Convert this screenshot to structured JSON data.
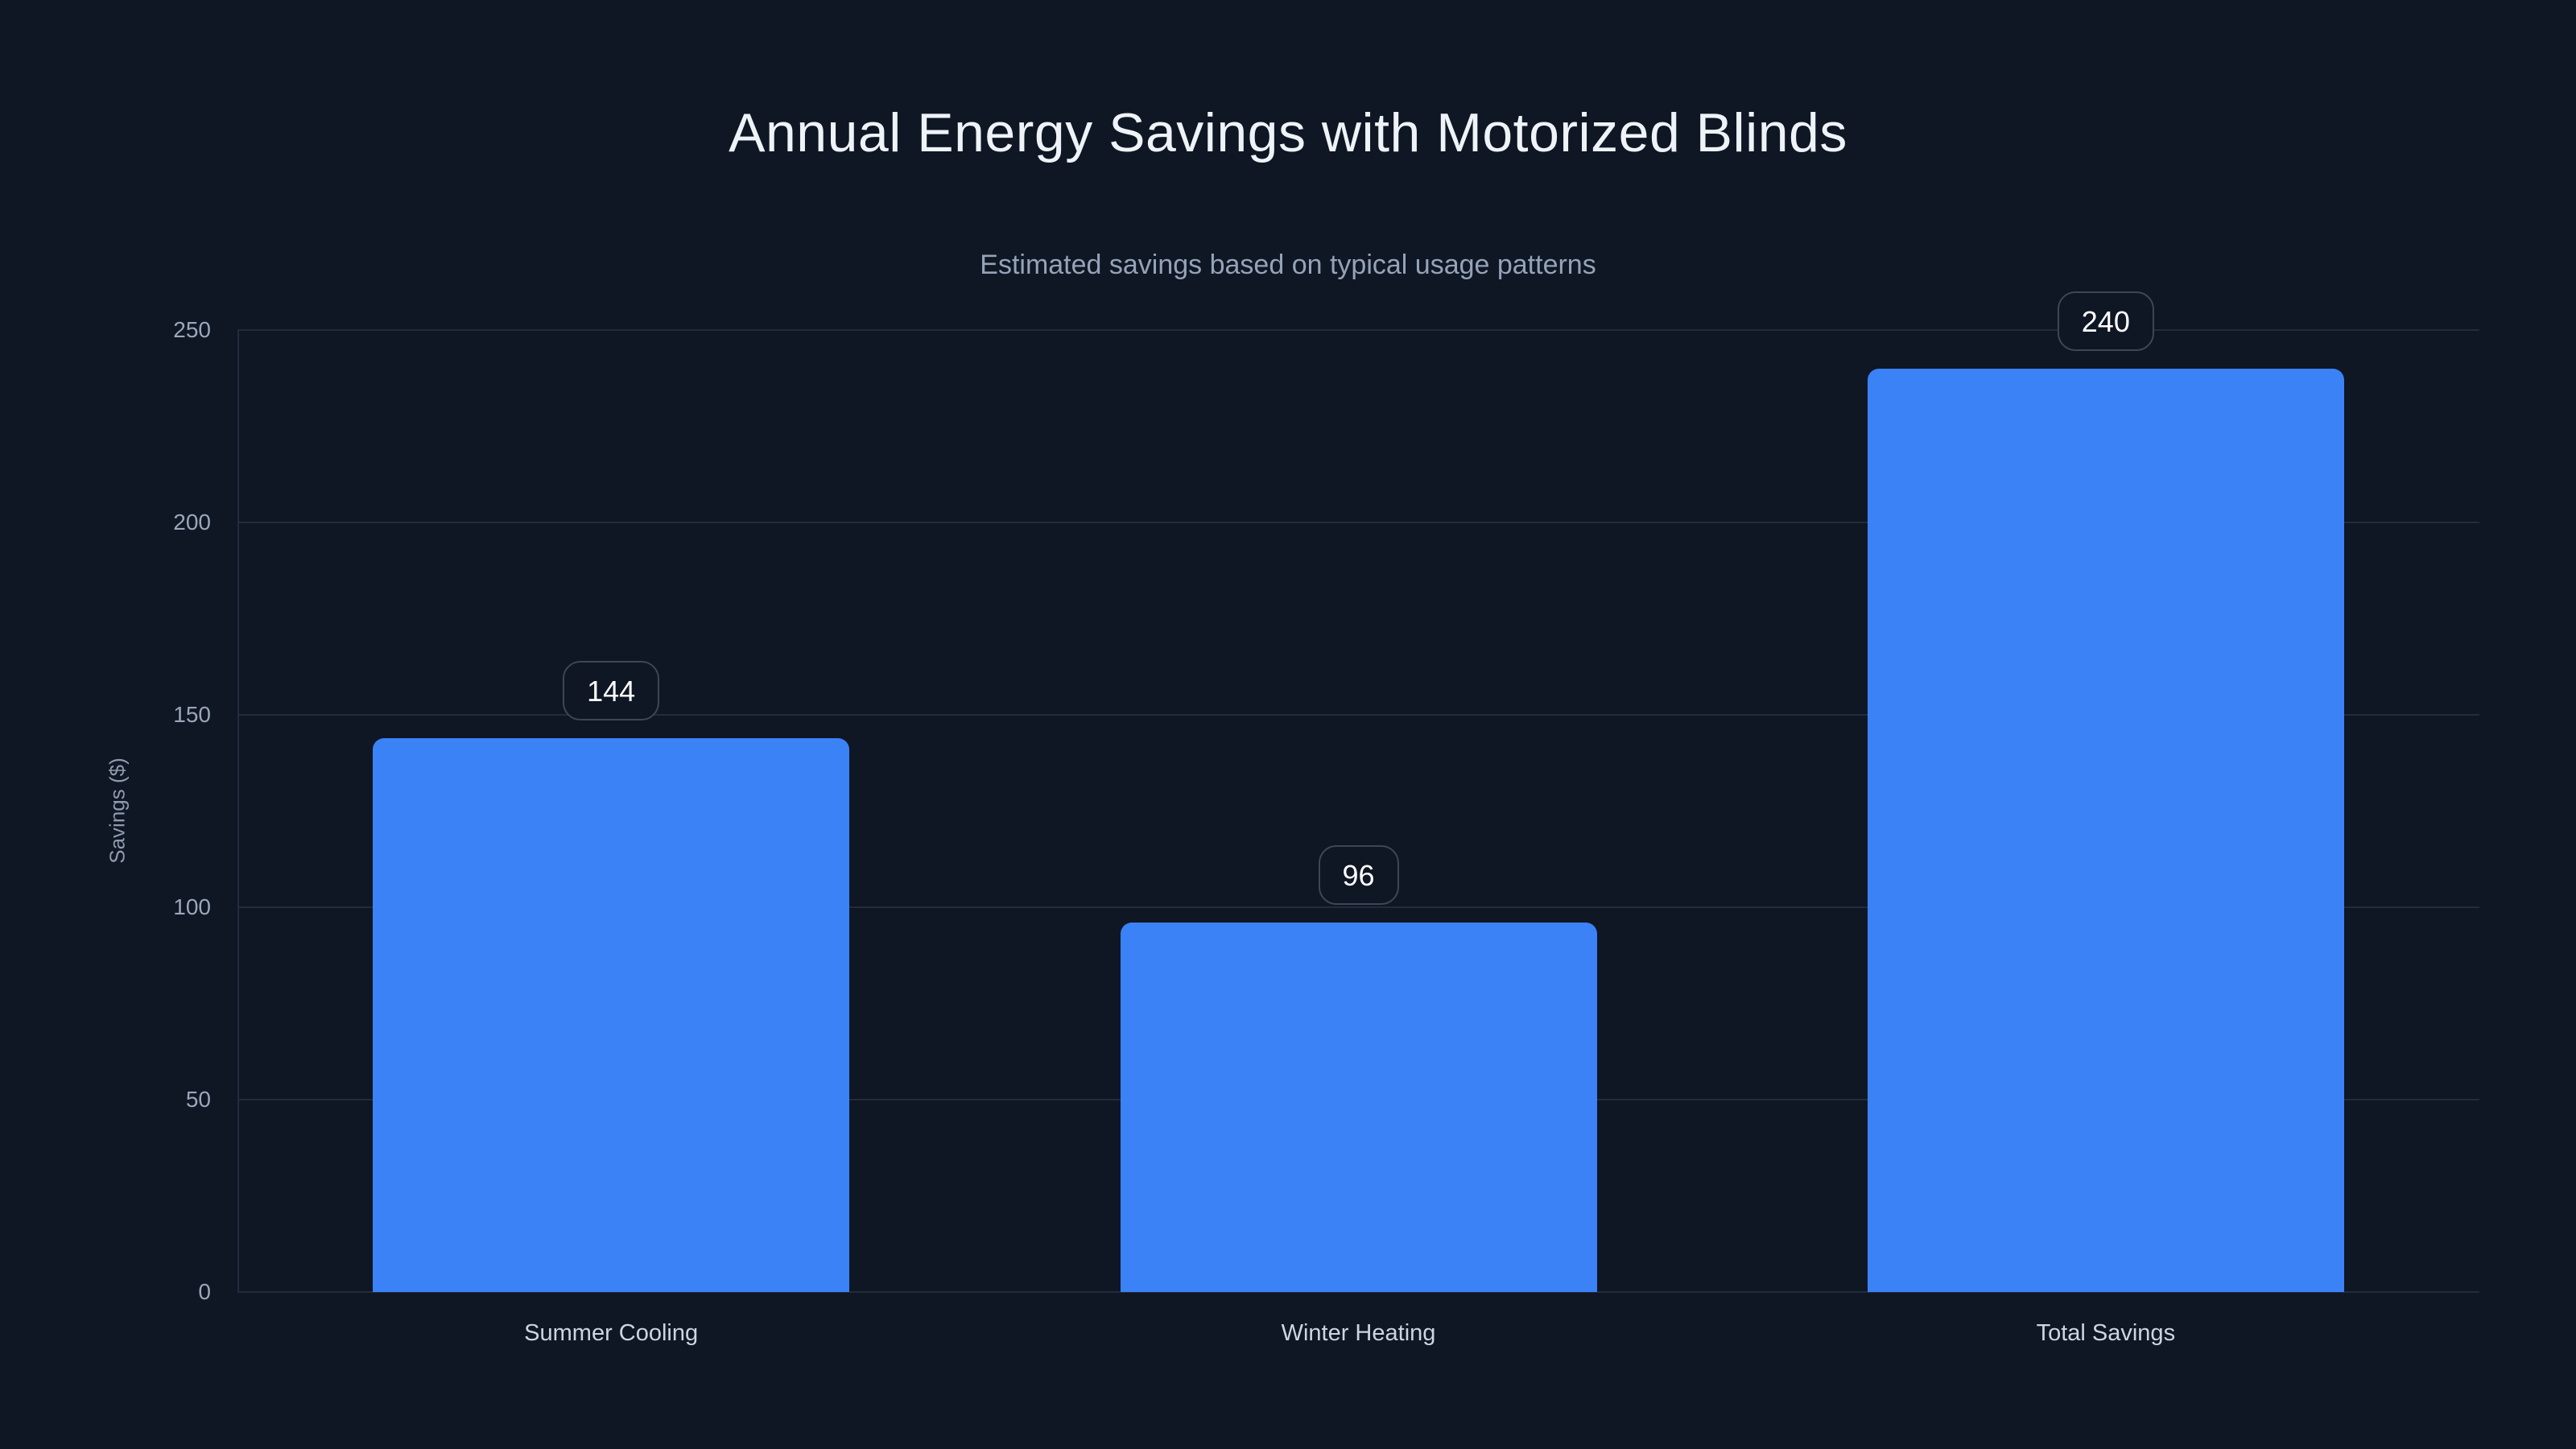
{
  "chart_data": {
    "type": "bar",
    "title": "Annual Energy Savings with Motorized Blinds",
    "subtitle": "Estimated savings based on typical usage patterns",
    "ylabel": "Savings ($)",
    "categories": [
      "Summer Cooling",
      "Winter Heating",
      "Total Savings"
    ],
    "values": [
      144,
      96,
      240
    ],
    "data_labels": [
      "144",
      "96",
      "240"
    ],
    "yticks": [
      0,
      50,
      100,
      150,
      200,
      250
    ],
    "ylim": [
      0,
      250
    ],
    "grid": true,
    "legend": false,
    "colors": {
      "background": "#0f1624",
      "bar": "#3b82f6",
      "gridline": "#222c3e",
      "axis_line": "#222c3e",
      "title_text": "#eef3f8",
      "subtitle_text": "#94a3b8",
      "tick_label_text": "#9aa7ba",
      "category_label_text": "#ccd5e0",
      "axis_title_text": "#8e9bae",
      "badge_border": "#3c4757",
      "badge_background": "#0f1624",
      "badge_text": "#ffffff"
    }
  }
}
